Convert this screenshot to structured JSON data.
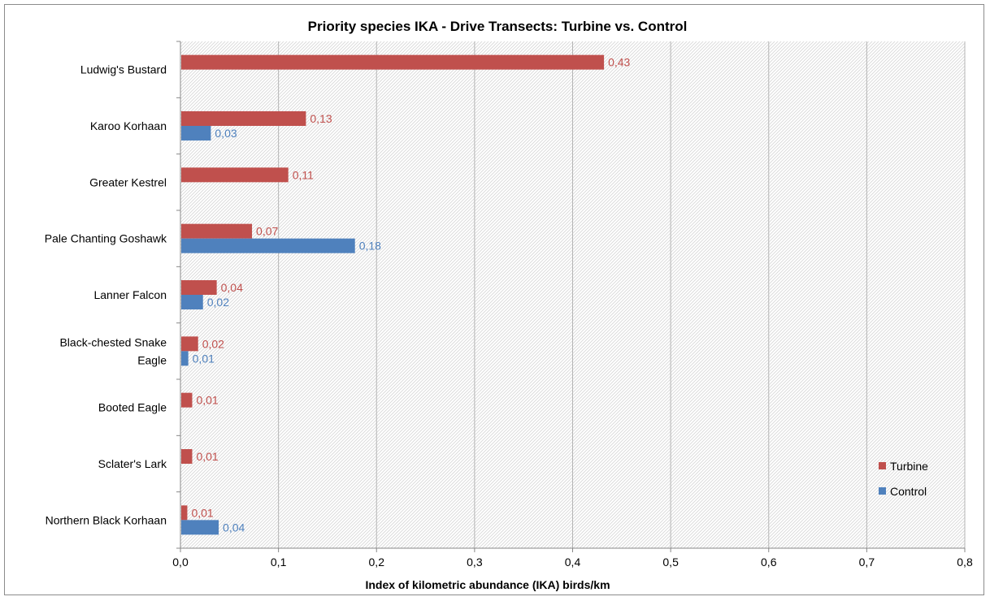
{
  "chart_data": {
    "type": "bar",
    "orientation": "horizontal",
    "title": "Priority species IKA - Drive Transects: Turbine vs. Control",
    "xlabel": "Index of kilometric abundance (IKA) birds/km",
    "ylabel": "",
    "xlim": [
      0,
      0.8
    ],
    "xticks": [
      "0,0",
      "0,1",
      "0,2",
      "0,3",
      "0,4",
      "0,5",
      "0,6",
      "0,7",
      "0,8"
    ],
    "grid": true,
    "legend_position": "right",
    "categories": [
      "Ludwig's Bustard",
      "Karoo Korhaan",
      "Greater Kestrel",
      "Pale Chanting Goshawk",
      "Lanner Falcon",
      "Black-chested Snake Eagle",
      "Booted Eagle",
      "Sclater's Lark",
      "Northern Black Korhaan"
    ],
    "category_lines": [
      [
        "Ludwig's Bustard"
      ],
      [
        "Karoo Korhaan"
      ],
      [
        "Greater Kestrel"
      ],
      [
        "Pale Chanting Goshawk"
      ],
      [
        "Lanner Falcon"
      ],
      [
        "Black-chested Snake",
        "Eagle"
      ],
      [
        "Booted Eagle"
      ],
      [
        "Sclater's Lark"
      ],
      [
        "Northern Black Korhaan"
      ]
    ],
    "series": [
      {
        "name": "Turbine",
        "color": "#c0504d",
        "values": [
          0.432,
          0.128,
          0.11,
          0.073,
          0.037,
          0.018,
          0.012,
          0.012,
          0.007
        ],
        "labels": [
          "0,43",
          "0,13",
          "0,11",
          "0,07",
          "0,04",
          "0,02",
          "0,01",
          "0,01",
          "0,01"
        ]
      },
      {
        "name": "Control",
        "color": "#4f81bd",
        "values": [
          null,
          0.031,
          null,
          0.178,
          0.023,
          0.008,
          null,
          null,
          0.039
        ],
        "labels": [
          null,
          "0,03",
          null,
          "0,18",
          "0,02",
          "0,01",
          null,
          null,
          "0,04"
        ]
      }
    ]
  }
}
